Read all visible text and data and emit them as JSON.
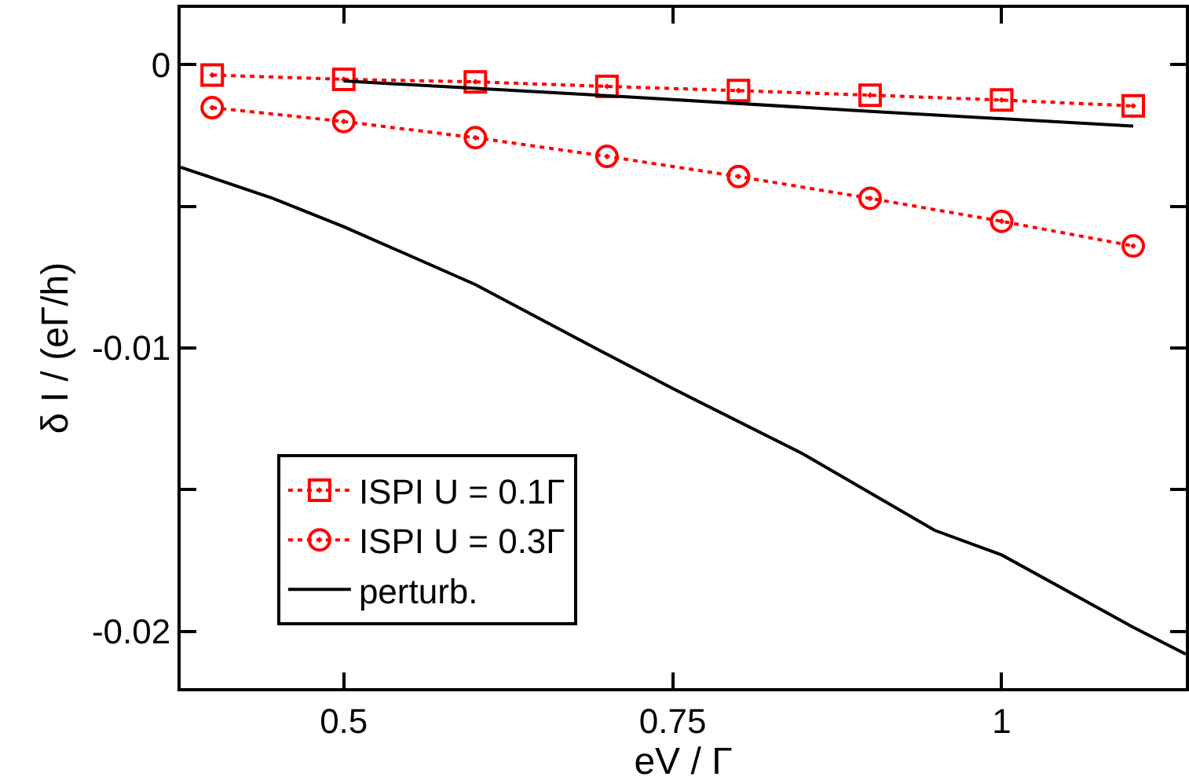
{
  "chart_data": {
    "type": "line",
    "xlabel": "eV / Γ",
    "ylabel": "δ I / (eΓ/h)",
    "xlim": [
      0.376,
      1.14
    ],
    "ylim": [
      -0.022,
      0.002
    ],
    "xticks": [
      0.5,
      0.75,
      1
    ],
    "yticks": [
      0,
      {
        "value": -0.005,
        "label": null
      },
      -0.01,
      {
        "value": -0.015,
        "label": null
      },
      -0.02
    ],
    "grid": false,
    "legend": "bottom left",
    "series": [
      {
        "name": "ISPI U = 0.1Γ",
        "color": "#ff0000",
        "marker": "square",
        "line_style": "dotted",
        "x": [
          0.4,
          0.5,
          0.6,
          0.7,
          0.8,
          0.9,
          1.0,
          1.1
        ],
        "values": [
          -0.00037,
          -0.00052,
          -0.00061,
          -0.00077,
          -0.00092,
          -0.00108,
          -0.00125,
          -0.00146
        ]
      },
      {
        "name": "ISPI U = 0.3Γ",
        "color": "#ff0000",
        "marker": "circle",
        "line_style": "dotted",
        "x": [
          0.4,
          0.5,
          0.6,
          0.7,
          0.8,
          0.9,
          1.0,
          1.1
        ],
        "values": [
          -0.00152,
          -0.00201,
          -0.00258,
          -0.00324,
          -0.00395,
          -0.00472,
          -0.00553,
          -0.0064
        ]
      },
      {
        "name": "perturb.",
        "color": "#000000",
        "marker": "none",
        "line_style": "solid",
        "x": [
          0.5,
          0.7,
          0.9,
          1.1
        ],
        "values": [
          -0.00058,
          -0.0011,
          -0.00165,
          -0.00217
        ]
      },
      {
        "color": "#000000",
        "marker": "none",
        "line_style": "solid",
        "x": [
          0.376,
          0.445,
          0.5,
          0.6,
          0.691,
          0.75,
          0.85,
          0.949,
          1.0,
          1.1,
          1.14
        ],
        "values": [
          -0.00362,
          -0.0047,
          -0.00572,
          -0.00776,
          -0.01,
          -0.01143,
          -0.01376,
          -0.01643,
          -0.0173,
          -0.01985,
          -0.0208
        ]
      }
    ]
  }
}
